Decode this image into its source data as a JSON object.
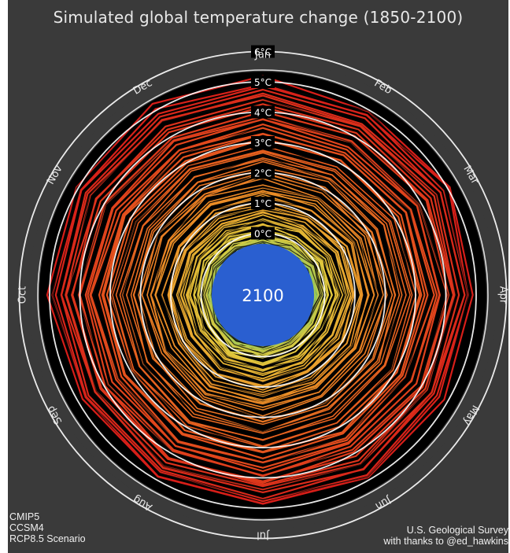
{
  "chart_data": {
    "type": "spiral",
    "title": "Simulated global temperature change (1850-2100)",
    "center_label": "2100",
    "months": [
      "Jan",
      "Feb",
      "Mar",
      "Apr",
      "May",
      "Jun",
      "Jul",
      "Aug",
      "Sep",
      "Oct",
      "Nov",
      "Dec"
    ],
    "rings": [
      {
        "label": "0°C",
        "value": 0
      },
      {
        "label": "1°C",
        "value": 1
      },
      {
        "label": "2°C",
        "value": 2
      },
      {
        "label": "3°C",
        "value": 3
      },
      {
        "label": "4°C",
        "value": 4
      },
      {
        "label": "5°C",
        "value": 5
      },
      {
        "label": "6°C",
        "value": 6
      }
    ],
    "r_range": [
      -1.0,
      6.0
    ],
    "year_range": [
      1850,
      2100
    ],
    "colormap": "blue-green-yellow-orange-red by year",
    "decadal_anomalies": [
      {
        "year": 1850,
        "values": [
          -0.9,
          -0.9,
          -0.8,
          -0.8,
          -0.9,
          -0.8,
          -0.9,
          -0.8,
          -0.9,
          -0.9,
          -0.8,
          -0.9
        ]
      },
      {
        "year": 1900,
        "values": [
          -0.7,
          -0.7,
          -0.7,
          -0.6,
          -0.7,
          -0.7,
          -0.7,
          -0.6,
          -0.7,
          -0.7,
          -0.6,
          -0.7
        ]
      },
      {
        "year": 1950,
        "values": [
          -0.4,
          -0.4,
          -0.3,
          -0.3,
          -0.4,
          -0.4,
          -0.4,
          -0.3,
          -0.3,
          -0.4,
          -0.4,
          -0.4
        ]
      },
      {
        "year": 1980,
        "values": [
          -0.1,
          -0.1,
          0.0,
          0.0,
          -0.1,
          -0.1,
          0.0,
          0.0,
          -0.1,
          -0.1,
          0.0,
          -0.1
        ]
      },
      {
        "year": 2000,
        "values": [
          0.4,
          0.4,
          0.5,
          0.5,
          0.4,
          0.4,
          0.5,
          0.5,
          0.4,
          0.5,
          0.4,
          0.4
        ]
      },
      {
        "year": 2020,
        "values": [
          1.0,
          1.0,
          1.1,
          1.1,
          1.0,
          1.0,
          1.1,
          1.1,
          1.0,
          1.1,
          1.0,
          1.0
        ]
      },
      {
        "year": 2040,
        "values": [
          1.8,
          1.8,
          1.9,
          1.9,
          1.8,
          1.8,
          1.9,
          1.9,
          1.8,
          1.9,
          1.8,
          1.8
        ]
      },
      {
        "year": 2060,
        "values": [
          2.8,
          2.8,
          2.9,
          2.9,
          2.8,
          2.8,
          2.9,
          2.9,
          2.8,
          2.9,
          2.8,
          2.8
        ]
      },
      {
        "year": 2080,
        "values": [
          3.9,
          3.9,
          4.0,
          4.0,
          3.9,
          3.9,
          4.0,
          4.0,
          3.9,
          4.0,
          3.9,
          3.9
        ]
      },
      {
        "year": 2100,
        "values": [
          5.1,
          5.0,
          5.1,
          4.9,
          4.8,
          5.0,
          4.9,
          4.9,
          4.8,
          5.0,
          5.1,
          5.2
        ]
      }
    ]
  },
  "credits": {
    "left": [
      "CMIP5",
      "CCSM4",
      "RCP8.5 Scenario"
    ],
    "right": [
      "U.S. Geological Survey",
      "with thanks to @ed_hawkins"
    ]
  },
  "colors": {
    "background": "#3a3a3a",
    "disc": "#000000",
    "rings": "#ffffff",
    "center": "#2a5fd0"
  }
}
